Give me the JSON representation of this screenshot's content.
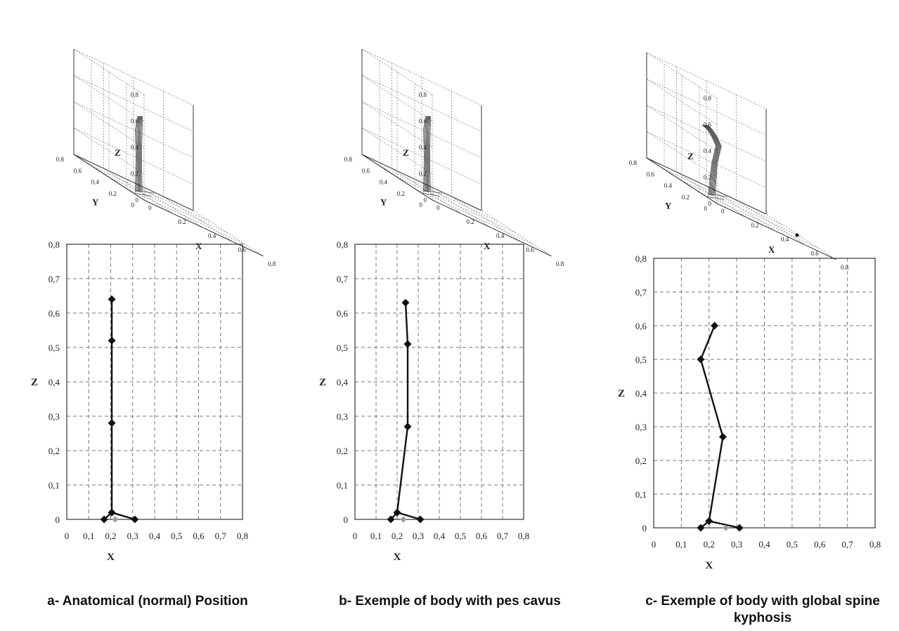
{
  "captions": [
    "a- Anatomical (normal) Position",
    "b- Exemple of body with pes cavus",
    "c- Exemple of body with global spine kyphosis"
  ],
  "colors": {
    "line": "#111111",
    "grid": "#777777",
    "foot_gray": "#9a9a9a"
  },
  "chart_data": [
    {
      "type": "scatter",
      "panel": "a",
      "title": "",
      "xlabel": "X",
      "ylabel": "Z",
      "xlim": [
        0,
        0.8
      ],
      "ylim": [
        0,
        0.8
      ],
      "xticks": [
        "0",
        "0,1",
        "0,2",
        "0,3",
        "0,4",
        "0,5",
        "0,6",
        "0,7",
        "0,8"
      ],
      "yticks": [
        "0",
        "0,1",
        "0,2",
        "0,3",
        "0,4",
        "0,5",
        "0,6",
        "0,7",
        "0,8"
      ],
      "grid": true,
      "series": [
        {
          "x": [
            0.205,
            0.205,
            0.205,
            0.205,
            0.31
          ],
          "y": [
            0.64,
            0.52,
            0.28,
            0.02,
            0.0
          ]
        },
        {
          "x": [
            0.205,
            0.17
          ],
          "y": [
            0.02,
            0.0
          ]
        }
      ],
      "extra_point": {
        "x": 0.22,
        "y": 0.0
      }
    },
    {
      "type": "scatter",
      "panel": "b",
      "title": "",
      "xlabel": "X",
      "ylabel": "Z",
      "xlim": [
        0,
        0.8
      ],
      "ylim": [
        0,
        0.8
      ],
      "xticks": [
        "0",
        "0,1",
        "0,2",
        "0,3",
        "0,4",
        "0,5",
        "0,6",
        "0,7",
        "0,8"
      ],
      "yticks": [
        "0",
        "0,1",
        "0,2",
        "0,3",
        "0,4",
        "0,5",
        "0,6",
        "0,7",
        "0,8"
      ],
      "grid": true,
      "series": [
        {
          "x": [
            0.24,
            0.25,
            0.25,
            0.2,
            0.31
          ],
          "y": [
            0.63,
            0.51,
            0.27,
            0.02,
            0.0
          ]
        },
        {
          "x": [
            0.2,
            0.17
          ],
          "y": [
            0.02,
            0.0
          ]
        }
      ],
      "extra_point": {
        "x": 0.23,
        "y": 0.0
      }
    },
    {
      "type": "scatter",
      "panel": "c",
      "title": "",
      "xlabel": "X",
      "ylabel": "Z",
      "xlim": [
        0,
        0.8
      ],
      "ylim": [
        0,
        0.8
      ],
      "xticks": [
        "0",
        "0,1",
        "0,2",
        "0,3",
        "0,4",
        "0,5",
        "0,6",
        "0,7",
        "0,8"
      ],
      "yticks": [
        "0",
        "0,1",
        "0,2",
        "0,3",
        "0,4",
        "0,5",
        "0,6",
        "0,7",
        "0,8"
      ],
      "grid": true,
      "series": [
        {
          "x": [
            0.22,
            0.17,
            0.25,
            0.2,
            0.31
          ],
          "y": [
            0.6,
            0.5,
            0.27,
            0.02,
            0.0
          ]
        },
        {
          "x": [
            0.2,
            0.17
          ],
          "y": [
            0.02,
            0.0
          ]
        }
      ],
      "extra_point": {
        "x": 0.26,
        "y": 0.0
      }
    }
  ],
  "plots3d": [
    {
      "panel": "a",
      "zlabel": "Z",
      "ylabel": "Y",
      "xlabel": "X",
      "zticks": [
        "0",
        "0.2",
        "0.4",
        "0.6",
        "0.8"
      ],
      "yticks": [
        "0.8",
        "0.6",
        "0.4",
        "0.2",
        "0"
      ],
      "xticks": [
        "0",
        "0.2",
        "0.4",
        "0.6",
        "0.8"
      ],
      "figure_pose": "upright"
    },
    {
      "panel": "b",
      "zlabel": "Z",
      "ylabel": "Y",
      "xlabel": "X",
      "zticks": [
        "0",
        "0.2",
        "0.4",
        "0.6",
        "0.8"
      ],
      "yticks": [
        "0.8",
        "0.6",
        "0.4",
        "0.2",
        "0"
      ],
      "xticks": [
        "0",
        "0.2",
        "0.4",
        "0.6",
        "0.8"
      ],
      "figure_pose": "upright"
    },
    {
      "panel": "c",
      "zlabel": "Z",
      "ylabel": "Y",
      "xlabel": "X",
      "zticks": [
        "0",
        "0.2",
        "0.4",
        "0.6",
        "0.8"
      ],
      "yticks": [
        "0.8",
        "0.6",
        "0.4",
        "0.2",
        "0"
      ],
      "xticks": [
        "0",
        "0.2",
        "0.4",
        "0.6",
        "0.8"
      ],
      "figure_pose": "kyphosis"
    }
  ]
}
